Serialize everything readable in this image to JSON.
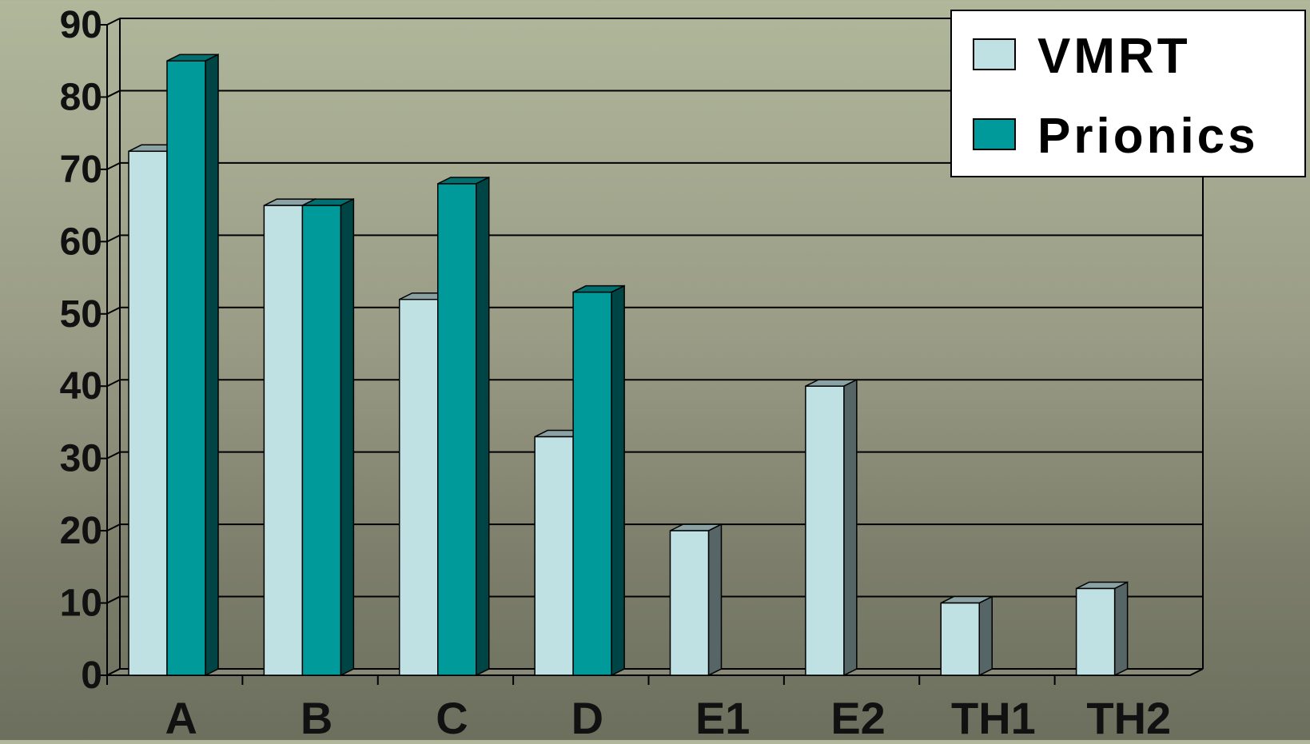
{
  "chart_data": {
    "type": "bar",
    "title": "",
    "xlabel": "",
    "ylabel": "",
    "categories": [
      "A",
      "B",
      "C",
      "D",
      "E1",
      "E2",
      "TH1",
      "TH2"
    ],
    "series": [
      {
        "name": "VMRT",
        "values": [
          72.5,
          65,
          52,
          33,
          20,
          40,
          10,
          12
        ],
        "color": "#bfe1e3"
      },
      {
        "name": "Prionics",
        "values": [
          85,
          65,
          68,
          53,
          null,
          null,
          null,
          null
        ],
        "color": "#009a9a"
      }
    ],
    "yticks": [
      "0",
      "10",
      "20",
      "30",
      "40",
      "50",
      "60",
      "70",
      "80",
      "90"
    ],
    "ylim": [
      0,
      90
    ],
    "grid": true,
    "legend": "top-right"
  }
}
